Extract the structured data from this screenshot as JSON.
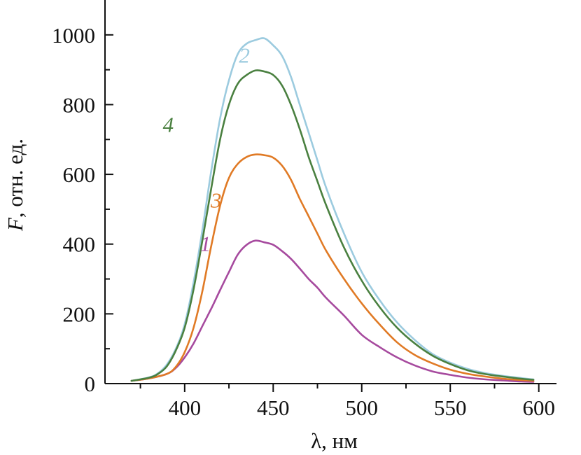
{
  "chart_data": {
    "type": "line",
    "xlabel": "λ, нм",
    "ylabel_italic": "F",
    "ylabel_rest": ", отн. ед.",
    "xlim": [
      355,
      610
    ],
    "ylim": [
      0,
      1100
    ],
    "x_ticks": [
      400,
      450,
      500,
      550,
      600
    ],
    "x_minor_ticks": [
      375,
      425,
      475,
      525,
      575
    ],
    "y_ticks": [
      0,
      200,
      400,
      600,
      800,
      1000
    ],
    "y_minor_ticks": [
      100,
      300,
      500,
      700,
      900
    ],
    "grid": false,
    "series": [
      {
        "name": "1",
        "color": "#a64a9e",
        "label_at": [
          407,
          400
        ],
        "x": [
          370,
          380,
          390,
          395,
          400,
          405,
          410,
          415,
          420,
          425,
          430,
          435,
          440,
          445,
          450,
          455,
          460,
          465,
          470,
          475,
          480,
          490,
          500,
          510,
          520,
          530,
          540,
          550,
          560,
          570,
          580,
          590,
          597
        ],
        "y": [
          8,
          15,
          28,
          45,
          75,
          115,
          165,
          215,
          268,
          320,
          370,
          398,
          410,
          405,
          398,
          380,
          358,
          330,
          300,
          275,
          245,
          195,
          140,
          105,
          75,
          52,
          35,
          25,
          17,
          12,
          9,
          6,
          5
        ]
      },
      {
        "name": "2",
        "color": "#9ccbdf",
        "label_at": [
          429,
          940
        ],
        "x": [
          370,
          380,
          385,
          390,
          395,
          400,
          405,
          410,
          415,
          420,
          425,
          430,
          435,
          440,
          445,
          450,
          455,
          460,
          465,
          470,
          475,
          480,
          490,
          500,
          510,
          520,
          530,
          540,
          550,
          560,
          570,
          580,
          590,
          597
        ],
        "y": [
          8,
          18,
          30,
          55,
          100,
          170,
          290,
          440,
          610,
          760,
          870,
          945,
          975,
          985,
          990,
          970,
          940,
          880,
          800,
          720,
          640,
          560,
          430,
          320,
          240,
          175,
          125,
          85,
          60,
          42,
          30,
          22,
          16,
          12
        ]
      },
      {
        "name": "3",
        "color": "#e07a25",
        "label_at": [
          413,
          525
        ],
        "x": [
          370,
          380,
          390,
          395,
          400,
          405,
          410,
          415,
          420,
          425,
          430,
          435,
          440,
          445,
          450,
          455,
          460,
          465,
          470,
          475,
          480,
          490,
          500,
          510,
          520,
          530,
          540,
          550,
          560,
          570,
          580,
          590,
          597
        ],
        "y": [
          8,
          15,
          28,
          48,
          90,
          160,
          265,
          395,
          510,
          590,
          630,
          650,
          657,
          655,
          648,
          625,
          585,
          530,
          480,
          430,
          380,
          300,
          230,
          170,
          118,
          82,
          58,
          40,
          28,
          20,
          14,
          10,
          8
        ]
      },
      {
        "name": "4",
        "color": "#4a8040",
        "label_at": [
          386,
          742
        ],
        "x": [
          370,
          380,
          385,
          390,
          395,
          400,
          405,
          410,
          415,
          420,
          425,
          430,
          435,
          440,
          445,
          450,
          455,
          460,
          465,
          470,
          475,
          480,
          490,
          500,
          510,
          520,
          530,
          540,
          550,
          560,
          570,
          580,
          590,
          597
        ],
        "y": [
          8,
          17,
          28,
          50,
          95,
          160,
          270,
          410,
          560,
          700,
          800,
          860,
          885,
          898,
          895,
          885,
          855,
          800,
          730,
          650,
          580,
          510,
          390,
          295,
          220,
          160,
          115,
          80,
          56,
          38,
          27,
          20,
          14,
          11
        ]
      }
    ]
  }
}
